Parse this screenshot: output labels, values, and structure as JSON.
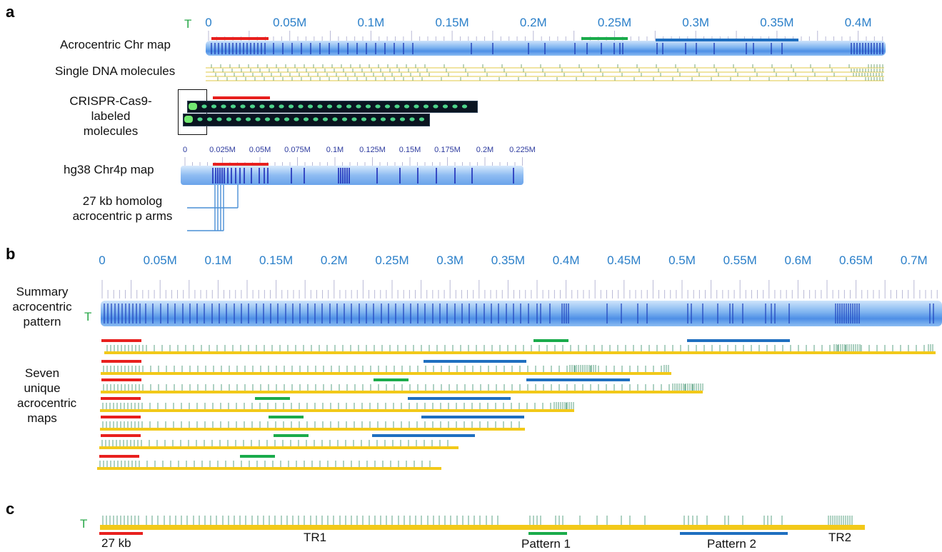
{
  "panels": {
    "a": "a",
    "b": "b",
    "c": "c"
  },
  "telomere": "T",
  "panel_a": {
    "axis_ticks": [
      "0",
      "0.05M",
      "0.1M",
      "0.15M",
      "0.2M",
      "0.25M",
      "0.3M",
      "0.35M",
      "0.4M"
    ],
    "acro_label": "Acrocentric Chr map",
    "single_label": "Single DNA molecules",
    "crispr_label": "CRISPR-Cas9-\nlabeled\nmolecules",
    "hg38_ticks": [
      "0",
      "0.025M",
      "0.05M",
      "0.075M",
      "0.1M",
      "0.125M",
      "0.15M",
      "0.175M",
      "0.2M",
      "0.225M"
    ],
    "hg38_label": "hg38 Chr4p map",
    "homolog_label": "27 kb homolog\nacrocentric p arms"
  },
  "panel_b": {
    "axis_ticks": [
      "0",
      "0.05M",
      "0.1M",
      "0.15M",
      "0.2M",
      "0.25M",
      "0.3M",
      "0.35M",
      "0.4M",
      "0.45M",
      "0.5M",
      "0.55M",
      "0.6M",
      "0.65M",
      "0.7M"
    ],
    "summary_label": "Summary\nacrocentric\npattern",
    "seven_label": "Seven\nunique\nacrocentric\nmaps"
  },
  "panel_c": {
    "kb27": "27 kb",
    "tr1": "TR1",
    "pattern1": "Pattern 1",
    "pattern2": "Pattern 2",
    "tr2": "TR2"
  },
  "colors": {
    "red": "#e8201e",
    "green": "#1aab4b",
    "blue": "#1f6fc0",
    "yellow": "#f2c919",
    "tick_blue": "#2a7fc9",
    "summary_bar": "#5a96e8"
  }
}
